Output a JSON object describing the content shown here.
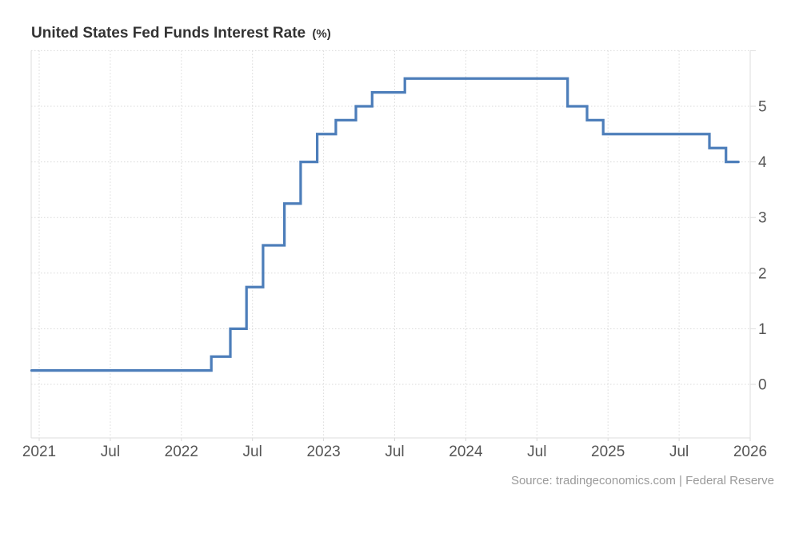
{
  "header": {
    "title": "United States Fed Funds Interest Rate",
    "unit": "(%)"
  },
  "footer": {
    "source": "Source: tradingeconomics.com | Federal Reserve"
  },
  "colors": {
    "line": "#4d7eba",
    "grid": "#d9d9d9",
    "axis": "#dedede",
    "title_text": "#333333",
    "axis_text": "#555555",
    "source_text": "#9a9a9a",
    "background": "#ffffff"
  },
  "chart_data": {
    "type": "line",
    "subtype": "step-after",
    "title": "United States Fed Funds Interest Rate (%)",
    "xlabel": "",
    "ylabel": "",
    "x_range": [
      "2020-12-12",
      "2026-01-01"
    ],
    "ylim": [
      -1,
      6
    ],
    "grid": "dotted",
    "legend": "none",
    "y_ticks": [
      0,
      1,
      2,
      3,
      4,
      5,
      6
    ],
    "y_tick_labels": [
      "0",
      "1",
      "2",
      "3",
      "4",
      "5",
      ""
    ],
    "x_tick_dates": [
      "2021-01-01",
      "2021-07-01",
      "2022-01-01",
      "2022-07-01",
      "2023-01-01",
      "2023-07-01",
      "2024-01-01",
      "2024-07-01",
      "2025-01-01",
      "2025-07-01",
      "2026-01-01"
    ],
    "x_tick_labels": [
      "2021",
      "Jul",
      "2022",
      "Jul",
      "2023",
      "Jul",
      "2024",
      "Jul",
      "2025",
      "Jul",
      "2026"
    ],
    "series": [
      {
        "name": "Fed Funds Interest Rate (%)",
        "step": true,
        "points": [
          {
            "date": "2020-12-12",
            "value": 0.25
          },
          {
            "date": "2022-03-17",
            "value": 0.5
          },
          {
            "date": "2022-05-05",
            "value": 1.0
          },
          {
            "date": "2022-06-16",
            "value": 1.75
          },
          {
            "date": "2022-07-28",
            "value": 2.5
          },
          {
            "date": "2022-09-22",
            "value": 3.25
          },
          {
            "date": "2022-11-03",
            "value": 4.0
          },
          {
            "date": "2022-12-15",
            "value": 4.5
          },
          {
            "date": "2023-02-02",
            "value": 4.75
          },
          {
            "date": "2023-03-23",
            "value": 5.0
          },
          {
            "date": "2023-05-04",
            "value": 5.25
          },
          {
            "date": "2023-07-27",
            "value": 5.5
          },
          {
            "date": "2024-09-19",
            "value": 5.0
          },
          {
            "date": "2024-11-08",
            "value": 4.75
          },
          {
            "date": "2024-12-19",
            "value": 4.5
          },
          {
            "date": "2025-09-18",
            "value": 4.25
          },
          {
            "date": "2025-10-30",
            "value": 4.0
          },
          {
            "date": "2025-12-01",
            "value": 4.0
          }
        ]
      }
    ]
  }
}
